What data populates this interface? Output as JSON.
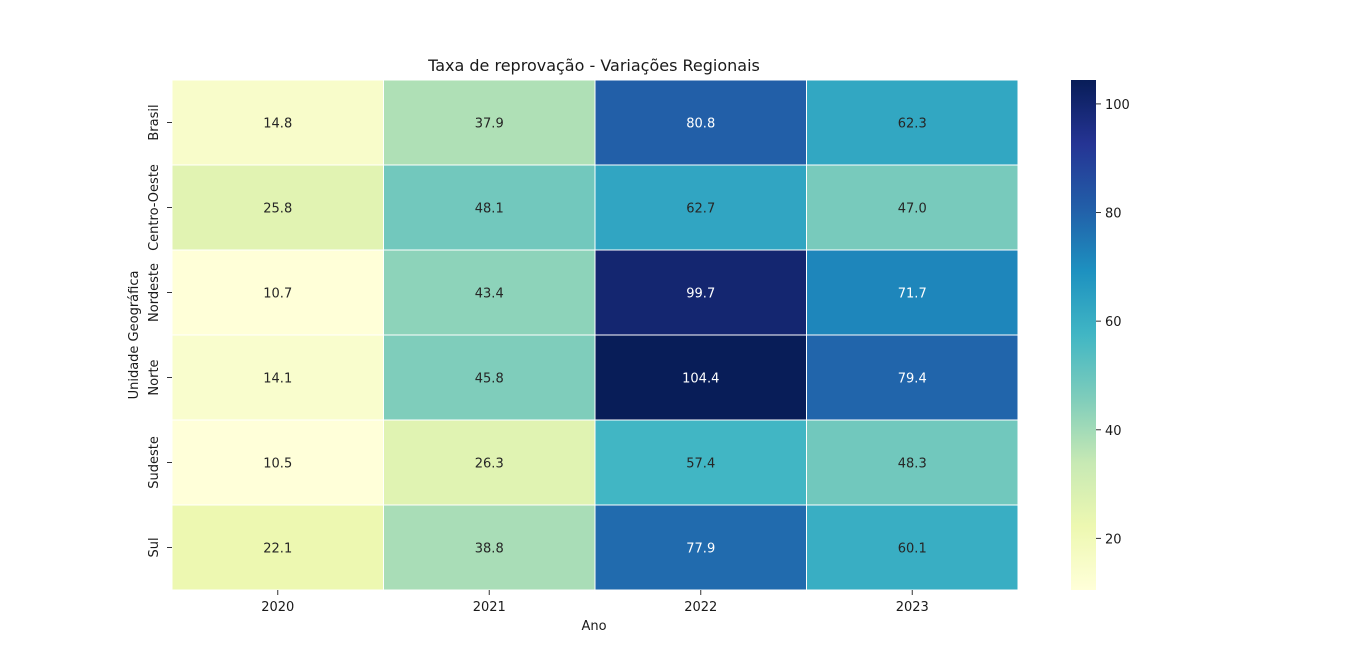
{
  "chart_data": {
    "type": "heatmap",
    "title": "Taxa de reprovação - Variações Regionais",
    "xlabel": "Ano",
    "ylabel": "Unidade Geográfica",
    "x": [
      "2020",
      "2021",
      "2022",
      "2023"
    ],
    "y": [
      "Brasil",
      "Centro-Oeste",
      "Nordeste",
      "Norte",
      "Sudeste",
      "Sul"
    ],
    "values": [
      [
        14.8,
        37.9,
        80.8,
        62.3
      ],
      [
        25.8,
        48.1,
        62.7,
        47.0
      ],
      [
        10.7,
        43.4,
        99.7,
        71.7
      ],
      [
        14.1,
        45.8,
        104.4,
        79.4
      ],
      [
        10.5,
        26.3,
        57.4,
        48.3
      ],
      [
        22.1,
        38.8,
        77.9,
        60.1
      ]
    ],
    "annotations": [
      [
        "14.8",
        "37.9",
        "80.8",
        "62.3"
      ],
      [
        "25.8",
        "48.1",
        "62.7",
        "47.0"
      ],
      [
        "10.7",
        "43.4",
        "99.7",
        "71.7"
      ],
      [
        "14.1",
        "45.8",
        "104.4",
        "79.4"
      ],
      [
        "10.5",
        "26.3",
        "57.4",
        "48.3"
      ],
      [
        "22.1",
        "38.8",
        "77.9",
        "60.1"
      ]
    ],
    "colorbar": {
      "colormap": "YlGnBu",
      "vmin": 10.5,
      "vmax": 104.4,
      "ticks": [
        "20",
        "40",
        "60",
        "80",
        "100"
      ]
    }
  }
}
